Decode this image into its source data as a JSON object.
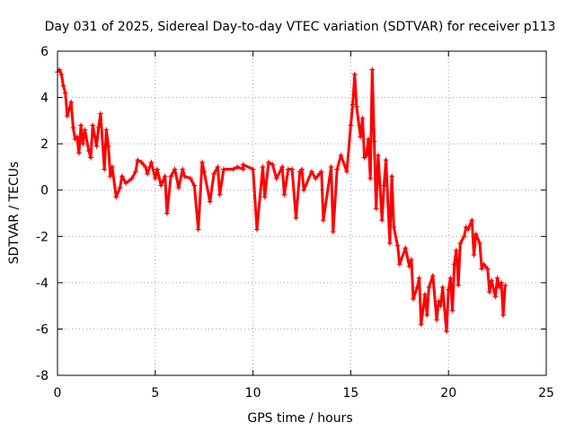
{
  "chart_data": {
    "type": "scatter",
    "title": "Day 031 of 2025, Sidereal Day-to-day VTEC variation (SDTVAR) for receiver p113",
    "xlabel": "GPS time / hours",
    "ylabel": "SDTVAR / TECUs",
    "xlim": [
      0,
      25
    ],
    "ylim": [
      -8,
      6
    ],
    "xticks": [
      "0",
      "5",
      "10",
      "15",
      "20",
      "25"
    ],
    "yticks": [
      "-8",
      "-6",
      "-4",
      "-2",
      "0",
      "2",
      "4",
      "6"
    ],
    "grid": true,
    "marker": "+",
    "series": [
      {
        "name": "SDTVAR",
        "color": "#ff0000",
        "points": [
          [
            0.0,
            5.1
          ],
          [
            0.2,
            5.0
          ],
          [
            0.4,
            4.2
          ],
          [
            0.6,
            3.5
          ],
          [
            0.8,
            2.7
          ],
          [
            1.0,
            2.3
          ],
          [
            1.3,
            2.0
          ],
          [
            1.6,
            1.7
          ],
          [
            2.0,
            1.9
          ],
          [
            2.2,
            3.3
          ],
          [
            2.5,
            2.6
          ],
          [
            2.8,
            1.0
          ],
          [
            3.2,
            0.1
          ],
          [
            3.5,
            0.3
          ],
          [
            4.0,
            0.8
          ],
          [
            4.5,
            1.0
          ],
          [
            5.0,
            0.5
          ],
          [
            5.5,
            0.6
          ],
          [
            6.0,
            0.9
          ],
          [
            6.5,
            0.6
          ],
          [
            7.0,
            0.2
          ],
          [
            7.5,
            0.8
          ],
          [
            8.0,
            0.7
          ],
          [
            8.5,
            0.9
          ],
          [
            9.0,
            0.9
          ],
          [
            9.5,
            0.9
          ],
          [
            10.0,
            0.9
          ],
          [
            10.5,
            1.0
          ],
          [
            11.0,
            1.1
          ],
          [
            11.5,
            1.0
          ],
          [
            12.0,
            0.9
          ],
          [
            12.5,
            0.9
          ],
          [
            13.0,
            0.8
          ],
          [
            13.5,
            0.8
          ],
          [
            14.0,
            1.0
          ],
          [
            14.5,
            1.5
          ],
          [
            15.0,
            2.8
          ],
          [
            15.3,
            3.6
          ],
          [
            15.6,
            3.1
          ],
          [
            15.8,
            1.5
          ],
          [
            16.0,
            0.5
          ],
          [
            16.3,
            -0.8
          ],
          [
            16.6,
            -1.3
          ],
          [
            17.0,
            -2.3
          ],
          [
            17.5,
            -3.2
          ],
          [
            18.0,
            -3.3
          ],
          [
            18.5,
            -3.8
          ],
          [
            19.0,
            -4.2
          ],
          [
            19.5,
            -4.8
          ],
          [
            20.0,
            -4.3
          ],
          [
            20.3,
            -3.2
          ],
          [
            20.6,
            -2.3
          ],
          [
            21.0,
            -1.7
          ],
          [
            21.4,
            -1.9
          ],
          [
            21.8,
            -3.2
          ],
          [
            22.2,
            -3.9
          ],
          [
            22.6,
            -4.2
          ],
          [
            22.9,
            -4.1
          ],
          [
            0.3,
            4.5
          ],
          [
            0.5,
            3.2
          ],
          [
            0.9,
            2.2
          ],
          [
            1.1,
            1.6
          ],
          [
            1.4,
            2.6
          ],
          [
            1.8,
            2.8
          ],
          [
            2.4,
            0.9
          ],
          [
            2.7,
            0.6
          ],
          [
            3.0,
            -0.3
          ],
          [
            3.8,
            0.5
          ],
          [
            4.3,
            1.2
          ],
          [
            4.8,
            1.2
          ],
          [
            5.3,
            0.2
          ],
          [
            5.6,
            -1.0
          ],
          [
            6.2,
            0.1
          ],
          [
            6.8,
            0.5
          ],
          [
            7.2,
            -1.7
          ],
          [
            7.8,
            -0.5
          ],
          [
            8.3,
            -0.2
          ],
          [
            9.2,
            1.0
          ],
          [
            10.2,
            -1.7
          ],
          [
            10.6,
            -0.3
          ],
          [
            11.2,
            0.5
          ],
          [
            11.6,
            -0.2
          ],
          [
            12.2,
            -1.2
          ],
          [
            12.6,
            0.0
          ],
          [
            13.2,
            0.5
          ],
          [
            13.6,
            -1.3
          ],
          [
            14.1,
            -1.8
          ],
          [
            14.8,
            0.8
          ],
          [
            15.2,
            5.0
          ],
          [
            15.5,
            2.3
          ],
          [
            15.9,
            2.2
          ],
          [
            16.1,
            5.2
          ],
          [
            16.4,
            1.5
          ],
          [
            16.8,
            1.3
          ],
          [
            17.2,
            -1.6
          ],
          [
            17.8,
            -2.5
          ],
          [
            18.2,
            -4.7
          ],
          [
            18.6,
            -5.8
          ],
          [
            18.9,
            -5.4
          ],
          [
            19.2,
            -3.7
          ],
          [
            19.6,
            -5.0
          ],
          [
            19.9,
            -6.1
          ],
          [
            20.2,
            -5.2
          ],
          [
            20.5,
            -4.1
          ],
          [
            20.8,
            -2.0
          ],
          [
            21.2,
            -1.3
          ],
          [
            21.6,
            -2.3
          ],
          [
            22.0,
            -3.4
          ],
          [
            22.4,
            -4.6
          ],
          [
            22.8,
            -5.4
          ],
          [
            0.1,
            5.2
          ],
          [
            0.7,
            3.8
          ],
          [
            1.2,
            2.8
          ],
          [
            1.7,
            1.4
          ],
          [
            2.1,
            2.7
          ],
          [
            2.6,
            1.9
          ],
          [
            3.3,
            0.6
          ],
          [
            4.1,
            1.3
          ],
          [
            4.6,
            0.7
          ],
          [
            5.1,
            0.9
          ],
          [
            5.8,
            0.6
          ],
          [
            6.4,
            0.9
          ],
          [
            7.4,
            1.2
          ],
          [
            8.2,
            1.0
          ],
          [
            9.5,
            1.1
          ],
          [
            10.8,
            1.2
          ],
          [
            11.8,
            0.9
          ],
          [
            12.4,
            0.8
          ],
          [
            13.4,
            0.7
          ],
          [
            14.3,
            0.9
          ],
          [
            15.1,
            3.7
          ],
          [
            15.7,
            1.4
          ],
          [
            16.2,
            2.1
          ],
          [
            16.7,
            0.2
          ],
          [
            17.1,
            0.6
          ],
          [
            17.4,
            -2.4
          ],
          [
            18.1,
            -3.0
          ],
          [
            18.4,
            -4.2
          ],
          [
            18.8,
            -4.5
          ],
          [
            19.4,
            -5.6
          ],
          [
            19.7,
            -4.2
          ],
          [
            20.1,
            -3.8
          ],
          [
            20.4,
            -2.6
          ],
          [
            20.9,
            -1.6
          ],
          [
            21.3,
            -2.8
          ],
          [
            21.7,
            -3.4
          ],
          [
            22.1,
            -4.4
          ],
          [
            22.5,
            -3.8
          ],
          [
            22.7,
            -4.0
          ]
        ]
      }
    ]
  }
}
